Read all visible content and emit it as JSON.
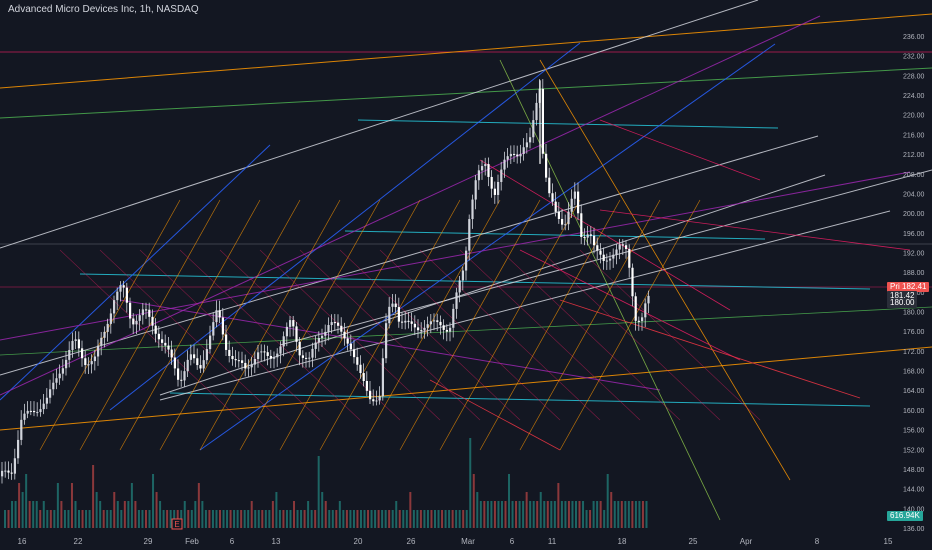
{
  "header": {
    "title": "Advanced Micro Devices Inc, 1h, NASDAQ"
  },
  "colors": {
    "background": "#131722",
    "up": "#d1d4dc",
    "down": "#ffffff",
    "vol_up": "#26a69a",
    "vol_down": "#ef5350",
    "axis_text": "#b2b5be",
    "cyan": "#26c6da",
    "orange": "#ff9800",
    "white_line": "#d1d4dc",
    "blue": "#2962ff",
    "purple": "#9c27b0",
    "pink": "#e91e63",
    "green": "#4caf50",
    "red_line": "#f23645",
    "olive": "#8bc34a"
  },
  "chart_data": {
    "type": "candlestick",
    "symbol": "Advanced Micro Devices Inc",
    "interval": "1h",
    "exchange": "NASDAQ",
    "y_axis": {
      "min": 136,
      "max": 236,
      "ticks": [
        136,
        140,
        144,
        148,
        152,
        156,
        160,
        164,
        168,
        172,
        176,
        180,
        184,
        188,
        192,
        196,
        200,
        204,
        208,
        212,
        216,
        220,
        224,
        228,
        232,
        236
      ]
    },
    "x_ticks": [
      "16",
      "22",
      "29",
      "Feb",
      "6",
      "13",
      "20",
      "26",
      "Mar",
      "6",
      "11",
      "18",
      "25",
      "Apr",
      "8",
      "15"
    ],
    "price_labels": [
      {
        "text": "182.41",
        "value": 182.41,
        "color": "#ef5350",
        "prefix": "Pri"
      },
      {
        "text": "181.42",
        "value": 181.42,
        "color": "#787b86",
        "prefix": ""
      },
      {
        "text": "180.00",
        "value": 180.0,
        "color": "#787b86",
        "prefix": ""
      }
    ],
    "volume_label": "616.94K",
    "path_points": [
      [
        0,
        146.5
      ],
      [
        12,
        147.5
      ],
      [
        22,
        158
      ],
      [
        35,
        160
      ],
      [
        48,
        162
      ],
      [
        60,
        168
      ],
      [
        75,
        174
      ],
      [
        85,
        170
      ],
      [
        95,
        170
      ],
      [
        105,
        176
      ],
      [
        115,
        183
      ],
      [
        123,
        185
      ],
      [
        132,
        178
      ],
      [
        145,
        180
      ],
      [
        160,
        175
      ],
      [
        170,
        171
      ],
      [
        180,
        166
      ],
      [
        190,
        171
      ],
      [
        200,
        168
      ],
      [
        210,
        175
      ],
      [
        218,
        180
      ],
      [
        226,
        173
      ],
      [
        236,
        170
      ],
      [
        246,
        168
      ],
      [
        258,
        172
      ],
      [
        270,
        170
      ],
      [
        280,
        173
      ],
      [
        292,
        178
      ],
      [
        300,
        172
      ],
      [
        310,
        170
      ],
      [
        320,
        175
      ],
      [
        330,
        178
      ],
      [
        340,
        176
      ],
      [
        350,
        174
      ],
      [
        360,
        167
      ],
      [
        370,
        163
      ],
      [
        380,
        162
      ],
      [
        388,
        180
      ],
      [
        395,
        183
      ],
      [
        400,
        178
      ],
      [
        410,
        177
      ],
      [
        420,
        177
      ],
      [
        430,
        177
      ],
      [
        440,
        178
      ],
      [
        450,
        176
      ],
      [
        458,
        184
      ],
      [
        465,
        190
      ],
      [
        470,
        200
      ],
      [
        477,
        207
      ],
      [
        486,
        210
      ],
      [
        495,
        204
      ],
      [
        505,
        210
      ],
      [
        513,
        213
      ],
      [
        520,
        212
      ],
      [
        530,
        214
      ],
      [
        540,
        227
      ],
      [
        544,
        210
      ],
      [
        550,
        203
      ],
      [
        556,
        200
      ],
      [
        565,
        198
      ],
      [
        575,
        204
      ],
      [
        582,
        195
      ],
      [
        590,
        197
      ],
      [
        596,
        192
      ],
      [
        604,
        190
      ],
      [
        612,
        192
      ],
      [
        620,
        193
      ],
      [
        628,
        192
      ],
      [
        636,
        179
      ],
      [
        642,
        178
      ],
      [
        648,
        182.41
      ]
    ],
    "volume_levels": [
      0.2,
      0.2,
      0.3,
      0.3,
      0.5,
      0.4,
      0.6,
      0.3,
      0.3,
      0.3,
      0.2,
      0.3,
      0.2,
      0.2,
      0.2,
      0.5,
      0.3,
      0.2,
      0.2,
      0.5,
      0.3,
      0.2,
      0.2,
      0.2,
      0.2,
      0.7,
      0.4,
      0.3,
      0.2,
      0.2,
      0.2,
      0.4,
      0.3,
      0.2,
      0.3,
      0.3,
      0.5,
      0.3,
      0.2,
      0.2,
      0.2,
      0.2,
      0.6,
      0.4,
      0.3,
      0.2,
      0.2,
      0.2,
      0.2,
      0.2,
      0.2,
      0.3,
      0.2,
      0.2,
      0.3,
      0.5,
      0.3,
      0.2,
      0.2,
      0.2,
      0.2,
      0.2,
      0.2,
      0.2,
      0.2,
      0.2,
      0.2,
      0.2,
      0.2,
      0.2,
      0.3,
      0.2,
      0.2,
      0.2,
      0.2,
      0.2,
      0.3,
      0.4,
      0.2,
      0.2,
      0.2,
      0.2,
      0.3,
      0.2,
      0.2,
      0.2,
      0.3,
      0.2,
      0.2,
      0.8,
      0.4,
      0.3,
      0.2,
      0.2,
      0.2,
      0.3,
      0.2,
      0.2,
      0.2,
      0.2,
      0.2,
      0.2,
      0.2,
      0.2,
      0.2,
      0.2,
      0.2,
      0.2,
      0.2,
      0.2,
      0.2,
      0.3,
      0.2,
      0.2,
      0.2,
      0.4,
      0.2,
      0.2,
      0.2,
      0.2,
      0.2,
      0.2,
      0.2,
      0.2,
      0.2,
      0.2,
      0.2,
      0.2,
      0.2,
      0.2,
      0.2,
      0.2,
      1.0,
      0.6,
      0.4,
      0.3,
      0.3,
      0.3,
      0.3,
      0.3,
      0.3,
      0.3,
      0.3,
      0.6,
      0.3,
      0.3,
      0.3,
      0.3,
      0.4,
      0.3,
      0.3,
      0.3,
      0.4,
      0.3,
      0.3,
      0.3,
      0.3,
      0.5,
      0.3,
      0.3,
      0.3,
      0.3,
      0.3,
      0.3,
      0.3,
      0.2,
      0.2,
      0.3,
      0.3,
      0.3,
      0.2,
      0.6,
      0.4,
      0.3,
      0.3,
      0.3,
      0.3,
      0.3,
      0.3,
      0.3,
      0.3,
      0.3,
      0.3
    ]
  }
}
